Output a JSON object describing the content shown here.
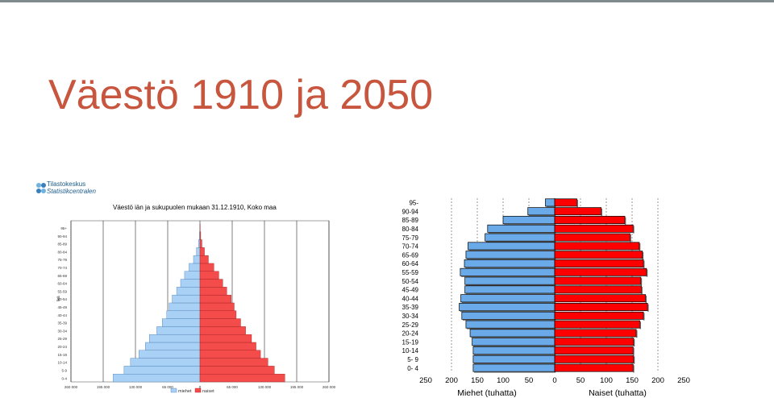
{
  "slide": {
    "title": "Väestö 1910 ja 2050",
    "logo_line1": "Tilastokeskus",
    "logo_line2": "Statistikcentralen"
  },
  "colors": {
    "title": "#c8553d",
    "male_1910": "#a9d0f5",
    "female_1910": "#f44b4b",
    "male_2050": "#6aaae8",
    "female_2050": "#ff0000"
  },
  "chart_data": [
    {
      "type": "bar",
      "orientation": "horizontal-pyramid",
      "title": "Väestö iän ja sukupuolen mukaan 31.12.1910, Koko maa",
      "ylabel": "Ikä",
      "categories": [
        "0-4",
        "5-9",
        "10-14",
        "15-19",
        "20-24",
        "25-29",
        "30-34",
        "35-39",
        "40-44",
        "45-49",
        "50-54",
        "55-59",
        "60-64",
        "65-69",
        "70-74",
        "75-79",
        "80-84",
        "85-89",
        "90-94",
        "95+"
      ],
      "x_ticks": [
        "260 000",
        "195 000",
        "130 000",
        "65 000",
        "0",
        "65 000",
        "130 000",
        "195 000",
        "260 000"
      ],
      "xlim": [
        -260000,
        260000
      ],
      "legend": [
        "miehet",
        "naiset"
      ],
      "legend_position": "bottom",
      "series": [
        {
          "name": "miehet",
          "values": [
            -175000,
            -153000,
            -140000,
            -123000,
            -110000,
            -102000,
            -87000,
            -76000,
            -67000,
            -62000,
            -56000,
            -47000,
            -39000,
            -31000,
            -22000,
            -13000,
            -7000,
            -3000,
            -1000,
            -300
          ]
        },
        {
          "name": "naiset",
          "values": [
            171000,
            150000,
            137000,
            122000,
            113000,
            104000,
            92000,
            82000,
            73000,
            69000,
            63000,
            54000,
            46000,
            38000,
            28000,
            17000,
            9000,
            4000,
            1500,
            500
          ]
        }
      ]
    },
    {
      "type": "bar",
      "orientation": "horizontal-pyramid",
      "categories": [
        "0- 4",
        "5- 9",
        "10-14",
        "15-19",
        "20-24",
        "25-29",
        "30-34",
        "35-39",
        "40-44",
        "45-49",
        "50-54",
        "55-59",
        "60-64",
        "65-69",
        "70-74",
        "75-79",
        "80-84",
        "85-89",
        "90-94",
        "95-"
      ],
      "x_ticks": [
        "250",
        "200",
        "150",
        "100",
        "50",
        "0",
        "50",
        "100",
        "150",
        "200",
        "250"
      ],
      "xlim": [
        -250,
        250
      ],
      "xlabel_left": "Miehet (tuhatta)",
      "xlabel_right": "Naiset (tuhatta)",
      "series": [
        {
          "name": "Miehet",
          "values": [
            -158,
            -158,
            -158,
            -160,
            -164,
            -172,
            -180,
            -185,
            -182,
            -174,
            -174,
            -183,
            -175,
            -172,
            -168,
            -135,
            -130,
            -100,
            -52,
            -18
          ]
        },
        {
          "name": "Naiset",
          "values": [
            152,
            153,
            152,
            153,
            158,
            165,
            172,
            180,
            176,
            168,
            167,
            178,
            172,
            170,
            164,
            146,
            152,
            136,
            90,
            43
          ]
        }
      ]
    }
  ]
}
